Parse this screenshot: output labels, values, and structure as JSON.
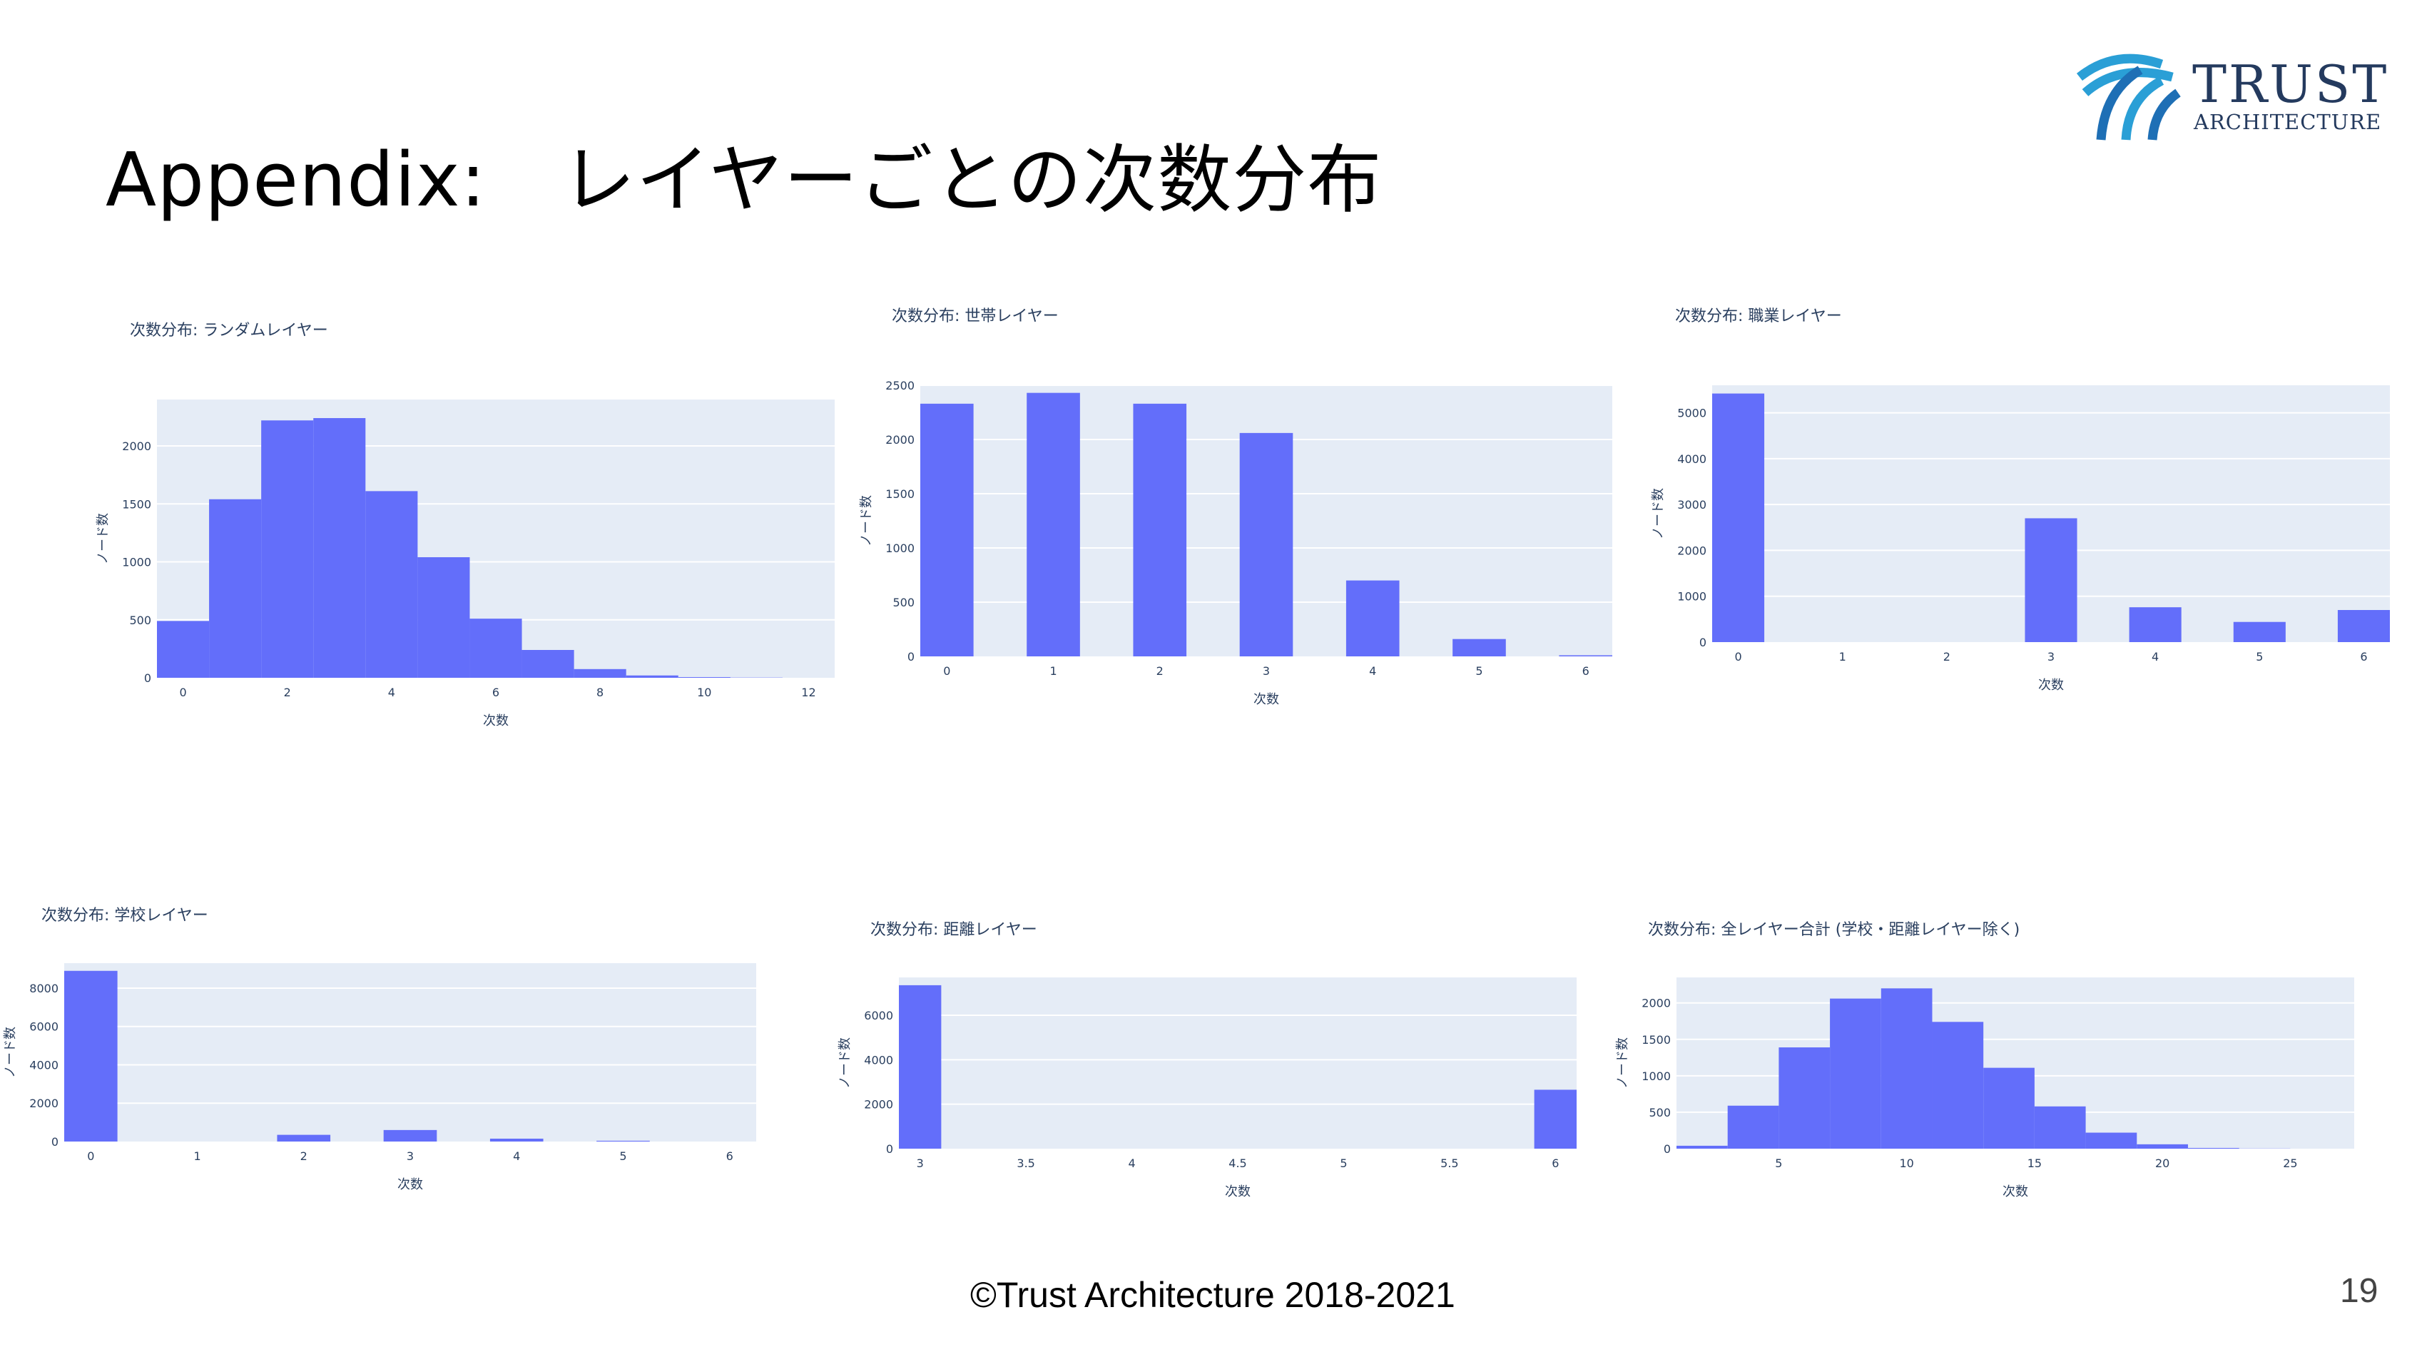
{
  "slide": {
    "title": "Appendix:　レイヤーごとの次数分布",
    "footer": "©Trust Architecture 2018-2021",
    "page_number": "19"
  },
  "logo": {
    "line1": "TRUST",
    "line2": "ARCHITECTURE",
    "colors": [
      "#2a9fd6",
      "#1e6fb5"
    ]
  },
  "colors": {
    "bar": "#636efa",
    "plot_bg": "#e5ecf6",
    "grid": "#ffffff",
    "tick_text": "#2a3f5f"
  },
  "chart_data": [
    {
      "type": "bar",
      "histogram": true,
      "title": "次数分布: ランダムレイヤー",
      "xlabel": "次数",
      "ylabel": "ノード数",
      "x": [
        0,
        1,
        2,
        3,
        4,
        5,
        6,
        7,
        8,
        9,
        10,
        11
      ],
      "values": [
        490,
        1540,
        2220,
        2240,
        1610,
        1040,
        510,
        240,
        75,
        20,
        6,
        2
      ],
      "bin_width": 1,
      "xlim": [
        -0.5,
        12.5
      ],
      "ylim": [
        0,
        2400
      ],
      "xticks": [
        0,
        2,
        4,
        6,
        8,
        10,
        12
      ],
      "yticks": [
        0,
        500,
        1000,
        1500,
        2000
      ],
      "grid": true
    },
    {
      "type": "bar",
      "title": "次数分布: 世帯レイヤー",
      "xlabel": "次数",
      "ylabel": "ノード数",
      "x": [
        0,
        1,
        2,
        3,
        4,
        5,
        6
      ],
      "values": [
        2330,
        2430,
        2330,
        2060,
        700,
        160,
        10
      ],
      "bin_width": 0.5,
      "xlim": [
        -0.25,
        6.25
      ],
      "ylim": [
        0,
        2500
      ],
      "xticks": [
        0,
        1,
        2,
        3,
        4,
        5,
        6
      ],
      "yticks": [
        0,
        500,
        1000,
        1500,
        2000,
        2500
      ],
      "grid": true
    },
    {
      "type": "bar",
      "title": "次数分布: 職業レイヤー",
      "xlabel": "次数",
      "ylabel": "ノード数",
      "x": [
        0,
        1,
        2,
        3,
        4,
        5,
        6
      ],
      "values": [
        5420,
        0,
        0,
        2700,
        760,
        440,
        700
      ],
      "bin_width": 0.5,
      "xlim": [
        -0.25,
        6.25
      ],
      "ylim": [
        0,
        5600
      ],
      "xticks": [
        0,
        1,
        2,
        3,
        4,
        5,
        6
      ],
      "yticks": [
        0,
        1000,
        2000,
        3000,
        4000,
        5000
      ],
      "grid": true
    },
    {
      "type": "bar",
      "title": "次数分布: 学校レイヤー",
      "xlabel": "次数",
      "ylabel": "ノード数",
      "x": [
        0,
        1,
        2,
        3,
        4,
        5,
        6
      ],
      "values": [
        8900,
        0,
        350,
        600,
        150,
        40,
        0
      ],
      "bin_width": 0.5,
      "xlim": [
        -0.25,
        6.25
      ],
      "ylim": [
        0,
        9300
      ],
      "xticks": [
        0,
        1,
        2,
        3,
        4,
        5,
        6
      ],
      "yticks": [
        0,
        2000,
        4000,
        6000,
        8000
      ],
      "grid": true
    },
    {
      "type": "bar",
      "title": "次数分布: 距離レイヤー",
      "xlabel": "次数",
      "ylabel": "ノード数",
      "x": [
        3,
        6
      ],
      "values": [
        7350,
        2650
      ],
      "bin_width": 0.2,
      "xlim": [
        2.9,
        6.1
      ],
      "ylim": [
        0,
        7700
      ],
      "xticks": [
        3,
        3.5,
        4,
        4.5,
        5,
        5.5,
        6
      ],
      "yticks": [
        0,
        2000,
        4000,
        6000
      ],
      "grid": true
    },
    {
      "type": "bar",
      "histogram": true,
      "title": "次数分布: 全レイヤー合計 (学校・距離レイヤー除く)",
      "xlabel": "次数",
      "ylabel": "ノード数",
      "x": [
        2,
        4,
        6,
        8,
        10,
        12,
        14,
        16,
        18,
        20,
        22,
        24
      ],
      "values": [
        40,
        590,
        1390,
        2060,
        2200,
        1740,
        1110,
        580,
        220,
        60,
        10,
        2
      ],
      "bin_width": 2,
      "xlim": [
        1,
        27.5
      ],
      "ylim": [
        0,
        2350
      ],
      "xticks": [
        5,
        10,
        15,
        20,
        25
      ],
      "yticks": [
        0,
        500,
        1000,
        1500,
        2000
      ],
      "grid": true
    }
  ]
}
